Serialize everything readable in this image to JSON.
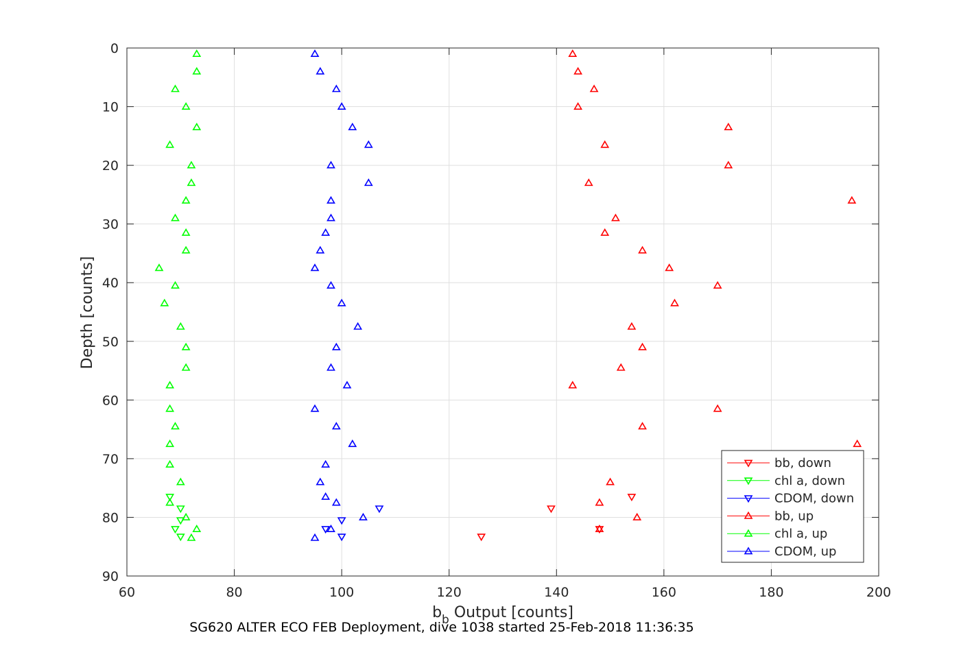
{
  "footer": "SG620 ALTER ECO FEB Deployment, dive 1038 started 25-Feb-2018 11:36:35",
  "chart_data": {
    "type": "scatter",
    "xlabel_main": "b",
    "xlabel_sub": "b",
    "xlabel_rest": " Output [counts]",
    "ylabel": "Depth [counts]",
    "xlim": [
      60,
      200
    ],
    "ylim": [
      0,
      90
    ],
    "y_reversed": true,
    "xticks": [
      60,
      80,
      100,
      120,
      140,
      160,
      180,
      200
    ],
    "yticks": [
      0,
      10,
      20,
      30,
      40,
      50,
      60,
      70,
      80,
      90
    ],
    "grid": true,
    "legend_position": "bottom-right",
    "series": [
      {
        "name": "bb, down",
        "color": "#ff0000",
        "marker": "triangle-down",
        "points": [
          [
            154,
            76.5
          ],
          [
            139,
            78.5
          ],
          [
            148,
            82
          ],
          [
            126,
            83.3
          ]
        ]
      },
      {
        "name": "chl a, down",
        "color": "#00ff00",
        "marker": "triangle-down",
        "points": [
          [
            68,
            76.5
          ],
          [
            70,
            78.5
          ],
          [
            70,
            80.5
          ],
          [
            69,
            82
          ],
          [
            70,
            83.3
          ]
        ]
      },
      {
        "name": "CDOM, down",
        "color": "#0000ff",
        "marker": "triangle-down",
        "points": [
          [
            107,
            78.5
          ],
          [
            100,
            80.5
          ],
          [
            97,
            82
          ],
          [
            100,
            83.3
          ]
        ]
      },
      {
        "name": "bb, up",
        "color": "#ff0000",
        "marker": "triangle-up",
        "points": [
          [
            143,
            1
          ],
          [
            144,
            4
          ],
          [
            147,
            7
          ],
          [
            144,
            10
          ],
          [
            172,
            13.5
          ],
          [
            149,
            16.5
          ],
          [
            172,
            20
          ],
          [
            146,
            23
          ],
          [
            195,
            26
          ],
          [
            151,
            29
          ],
          [
            149,
            31.5
          ],
          [
            156,
            34.5
          ],
          [
            161,
            37.5
          ],
          [
            170,
            40.5
          ],
          [
            162,
            43.5
          ],
          [
            154,
            47.5
          ],
          [
            156,
            51
          ],
          [
            152,
            54.5
          ],
          [
            143,
            57.5
          ],
          [
            170,
            61.5
          ],
          [
            156,
            64.5
          ],
          [
            196,
            67.5
          ],
          [
            150,
            74
          ],
          [
            148,
            77.5
          ],
          [
            155,
            80
          ],
          [
            148,
            82
          ]
        ]
      },
      {
        "name": "chl a, up",
        "color": "#00ff00",
        "marker": "triangle-up",
        "points": [
          [
            73,
            1
          ],
          [
            73,
            4
          ],
          [
            69,
            7
          ],
          [
            71,
            10
          ],
          [
            73,
            13.5
          ],
          [
            68,
            16.5
          ],
          [
            72,
            20
          ],
          [
            72,
            23
          ],
          [
            71,
            26
          ],
          [
            69,
            29
          ],
          [
            71,
            31.5
          ],
          [
            71,
            34.5
          ],
          [
            66,
            37.5
          ],
          [
            69,
            40.5
          ],
          [
            67,
            43.5
          ],
          [
            70,
            47.5
          ],
          [
            71,
            51
          ],
          [
            71,
            54.5
          ],
          [
            68,
            57.5
          ],
          [
            68,
            61.5
          ],
          [
            69,
            64.5
          ],
          [
            68,
            67.5
          ],
          [
            68,
            71
          ],
          [
            70,
            74
          ],
          [
            68,
            77.5
          ],
          [
            71,
            80
          ],
          [
            73,
            82
          ],
          [
            72,
            83.5
          ]
        ]
      },
      {
        "name": "CDOM, up",
        "color": "#0000ff",
        "marker": "triangle-up",
        "points": [
          [
            95,
            1
          ],
          [
            96,
            4
          ],
          [
            99,
            7
          ],
          [
            100,
            10
          ],
          [
            102,
            13.5
          ],
          [
            105,
            16.5
          ],
          [
            98,
            20
          ],
          [
            105,
            23
          ],
          [
            98,
            26
          ],
          [
            98,
            29
          ],
          [
            97,
            31.5
          ],
          [
            96,
            34.5
          ],
          [
            95,
            37.5
          ],
          [
            98,
            40.5
          ],
          [
            100,
            43.5
          ],
          [
            103,
            47.5
          ],
          [
            99,
            51
          ],
          [
            98,
            54.5
          ],
          [
            101,
            57.5
          ],
          [
            95,
            61.5
          ],
          [
            99,
            64.5
          ],
          [
            102,
            67.5
          ],
          [
            97,
            71
          ],
          [
            96,
            74
          ],
          [
            97,
            76.5
          ],
          [
            99,
            77.5
          ],
          [
            104,
            80
          ],
          [
            98,
            82
          ],
          [
            95,
            83.5
          ]
        ]
      }
    ]
  }
}
